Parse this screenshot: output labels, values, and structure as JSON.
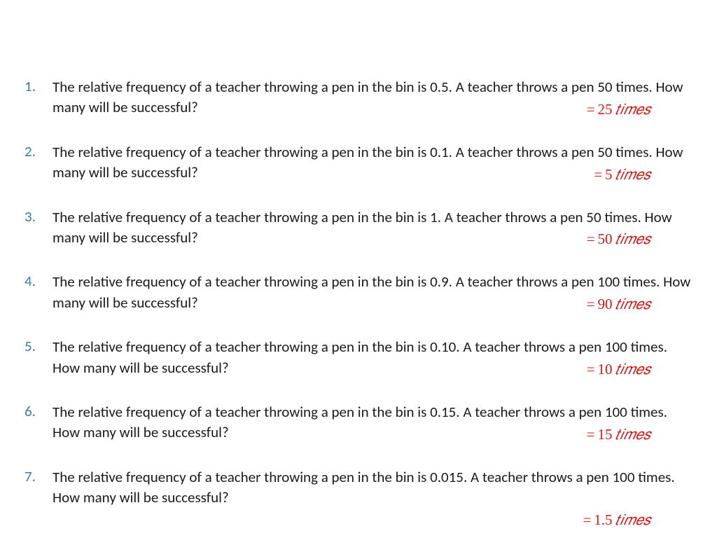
{
  "questions": [
    {
      "number": "1.",
      "text": "The relative frequency of a teacher throwing a pen in the bin is 0.5. A teacher throws a pen 50 times. How many will be successful?",
      "answer_value": "25",
      "answer_unit": "𝑡𝑖𝑚𝑒𝑠"
    },
    {
      "number": "2.",
      "text": "The relative frequency of a teacher throwing a pen in the bin is 0.1. A teacher throws a pen 50 times. How many will be successful?",
      "answer_value": "5",
      "answer_unit": "𝑡𝑖𝑚𝑒𝑠"
    },
    {
      "number": "3.",
      "text": "The relative frequency of a teacher throwing a pen in the bin is 1. A teacher throws a pen 50 times. How many will be successful?",
      "answer_value": "50",
      "answer_unit": "𝑡𝑖𝑚𝑒𝑠"
    },
    {
      "number": "4.",
      "text": "The relative frequency of a teacher throwing a pen in the bin is 0.9. A teacher throws a pen 100 times. How many will be successful?",
      "answer_value": "90",
      "answer_unit": "𝑡𝑖𝑚𝑒𝑠"
    },
    {
      "number": "5.",
      "text": "The relative frequency of a teacher throwing a pen in the bin is 0.10. A teacher throws a pen 100 times. How many will be successful?",
      "answer_value": "10",
      "answer_unit": "𝑡𝑖𝑚𝑒𝑠"
    },
    {
      "number": "6.",
      "text": "The relative frequency of a teacher throwing a pen in the bin is 0.15. A teacher throws a pen 100 times. How many will be successful?",
      "answer_value": "15",
      "answer_unit": "𝑡𝑖𝑚𝑒𝑠"
    },
    {
      "number": "7.",
      "text": "The relative frequency of a teacher throwing a pen in the bin is 0.015. A teacher throws a pen 100 times. How many will be successful?",
      "answer_value": "1.5",
      "answer_unit": "𝑡𝑖𝑚𝑒𝑠"
    }
  ],
  "colors": {
    "number_color": "#3d7aa8",
    "text_color": "#1a1a1a",
    "answer_color": "#d31818",
    "background": "#ffffff"
  },
  "typography": {
    "body_font": "Calibri",
    "answer_font": "Cambria Math",
    "font_size": 21
  }
}
